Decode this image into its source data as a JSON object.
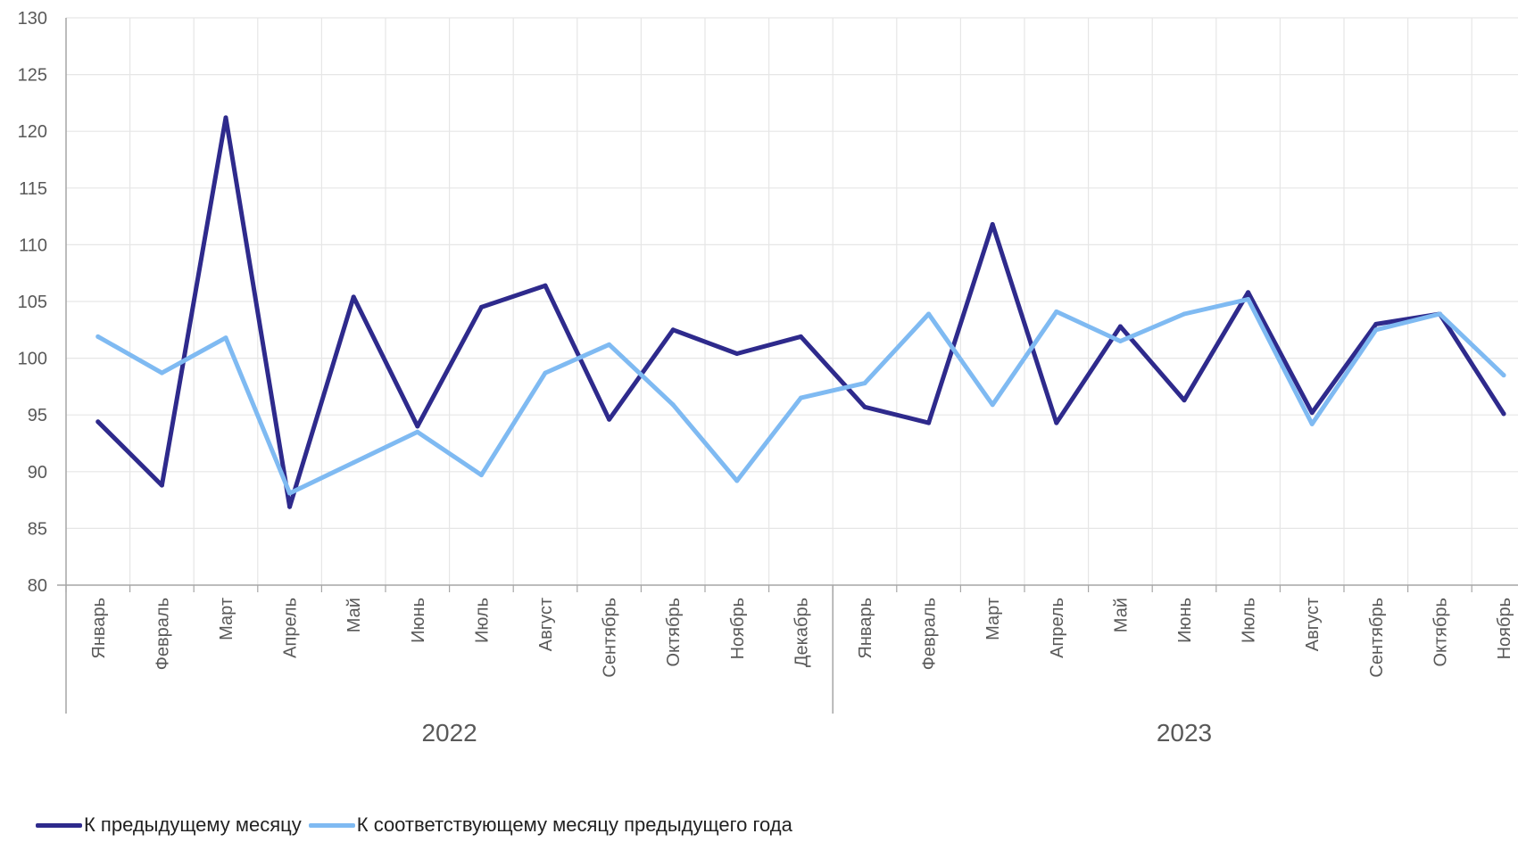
{
  "chart_data": {
    "type": "line",
    "ylim": [
      80,
      130
    ],
    "y_ticks": [
      "80",
      "85",
      "90",
      "95",
      "100",
      "105",
      "110",
      "115",
      "120",
      "125",
      "130"
    ],
    "groups": [
      {
        "label": "2022",
        "categories": [
          "Январь",
          "Февраль",
          "Март",
          "Апрель",
          "Май",
          "Июнь",
          "Июль",
          "Август",
          "Сентябрь",
          "Октябрь",
          "Ноябрь",
          "Декабрь"
        ]
      },
      {
        "label": "2023",
        "categories": [
          "Январь",
          "Февраль",
          "Март",
          "Апрель",
          "Май",
          "Июнь",
          "Июль",
          "Август",
          "Сентябрь",
          "Октябрь",
          "Ноябрь"
        ]
      }
    ],
    "series": [
      {
        "name": "К предыдущему месяцу",
        "color": "#2e2a8c",
        "values": [
          94.4,
          88.8,
          121.2,
          86.9,
          105.4,
          94.0,
          104.5,
          106.4,
          94.6,
          102.5,
          100.4,
          101.9,
          95.7,
          94.3,
          111.8,
          94.3,
          102.8,
          96.3,
          105.8,
          95.2,
          103.0,
          103.9,
          95.1
        ]
      },
      {
        "name": "К соответствующему месяцу предыдущего года",
        "color": "#7fbaf2",
        "values": [
          101.9,
          98.7,
          101.8,
          88.1,
          90.8,
          93.5,
          89.7,
          98.7,
          101.2,
          95.9,
          89.2,
          96.5,
          97.8,
          103.9,
          95.9,
          104.1,
          101.5,
          103.9,
          105.2,
          94.2,
          102.5,
          103.9,
          98.5
        ]
      }
    ],
    "grid": true,
    "legend_position": "bottom-left"
  },
  "legend": {
    "items": [
      {
        "label": "К предыдущему месяцу",
        "color": "#2e2a8c"
      },
      {
        "label": "К соответствующему месяцу предыдущего года",
        "color": "#7fbaf2"
      }
    ]
  }
}
